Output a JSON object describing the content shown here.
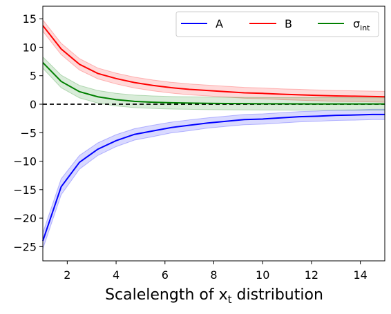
{
  "chart_data": {
    "type": "line",
    "xlabel_main": "Scalelength of x",
    "xlabel_sub": "t",
    "xlabel_tail": " distribution",
    "xlim": [
      1,
      15
    ],
    "ylim": [
      -27.5,
      17.2
    ],
    "x_ticks": [
      "2",
      "4",
      "6",
      "8",
      "10",
      "12",
      "14"
    ],
    "x_tick_values": [
      2,
      4,
      6,
      8,
      10,
      12,
      14
    ],
    "y_ticks": [
      "15",
      "10",
      "5",
      "0",
      "−5",
      "−10",
      "−15",
      "−20",
      "−25"
    ],
    "y_tick_values": [
      15,
      10,
      5,
      0,
      -5,
      -10,
      -15,
      -20,
      -25
    ],
    "zero_line": 0,
    "x": [
      1.0,
      1.75,
      2.5,
      3.25,
      4.0,
      4.75,
      5.5,
      6.25,
      7.0,
      7.75,
      8.5,
      9.25,
      10.0,
      10.75,
      11.5,
      12.25,
      13.0,
      13.75,
      14.5,
      15.0
    ],
    "series": [
      {
        "name": "A",
        "color": "#0000ff",
        "band_color": "#0000ff",
        "values": [
          -24.0,
          -14.5,
          -10.2,
          -7.9,
          -6.4,
          -5.3,
          -4.7,
          -4.1,
          -3.7,
          -3.3,
          -3.0,
          -2.7,
          -2.6,
          -2.4,
          -2.2,
          -2.1,
          -1.95,
          -1.9,
          -1.8,
          -1.8
        ],
        "err": [
          1.4,
          1.4,
          1.2,
          1.1,
          1.05,
          1.0,
          1.0,
          0.95,
          0.95,
          0.9,
          0.9,
          0.9,
          0.9,
          0.9,
          0.9,
          0.9,
          0.9,
          0.9,
          0.9,
          0.9
        ]
      },
      {
        "name": "B",
        "color": "#ff0000",
        "band_color": "#ff0000",
        "values": [
          13.8,
          9.7,
          7.0,
          5.4,
          4.5,
          3.8,
          3.3,
          2.9,
          2.6,
          2.4,
          2.2,
          2.0,
          1.9,
          1.75,
          1.65,
          1.55,
          1.45,
          1.4,
          1.35,
          1.3
        ],
        "err": [
          1.0,
          1.0,
          1.0,
          0.95,
          0.95,
          0.95,
          0.95,
          0.95,
          0.95,
          0.95,
          0.95,
          0.95,
          0.95,
          0.95,
          0.95,
          0.95,
          0.95,
          0.95,
          0.95,
          0.95
        ]
      },
      {
        "name": "σ",
        "name_sub": "int",
        "color": "#008000",
        "band_color": "#008000",
        "values": [
          7.3,
          4.0,
          2.2,
          1.3,
          0.8,
          0.5,
          0.35,
          0.25,
          0.2,
          0.15,
          0.12,
          0.1,
          0.08,
          0.07,
          0.06,
          0.05,
          0.05,
          0.04,
          0.04,
          0.04
        ],
        "err": [
          1.0,
          1.1,
          1.1,
          1.1,
          1.1,
          1.1,
          1.1,
          1.1,
          1.1,
          1.1,
          1.1,
          1.1,
          1.1,
          1.1,
          1.1,
          1.1,
          1.1,
          1.1,
          1.1,
          1.1
        ]
      }
    ],
    "legend_position": "top-right",
    "grid": false
  }
}
